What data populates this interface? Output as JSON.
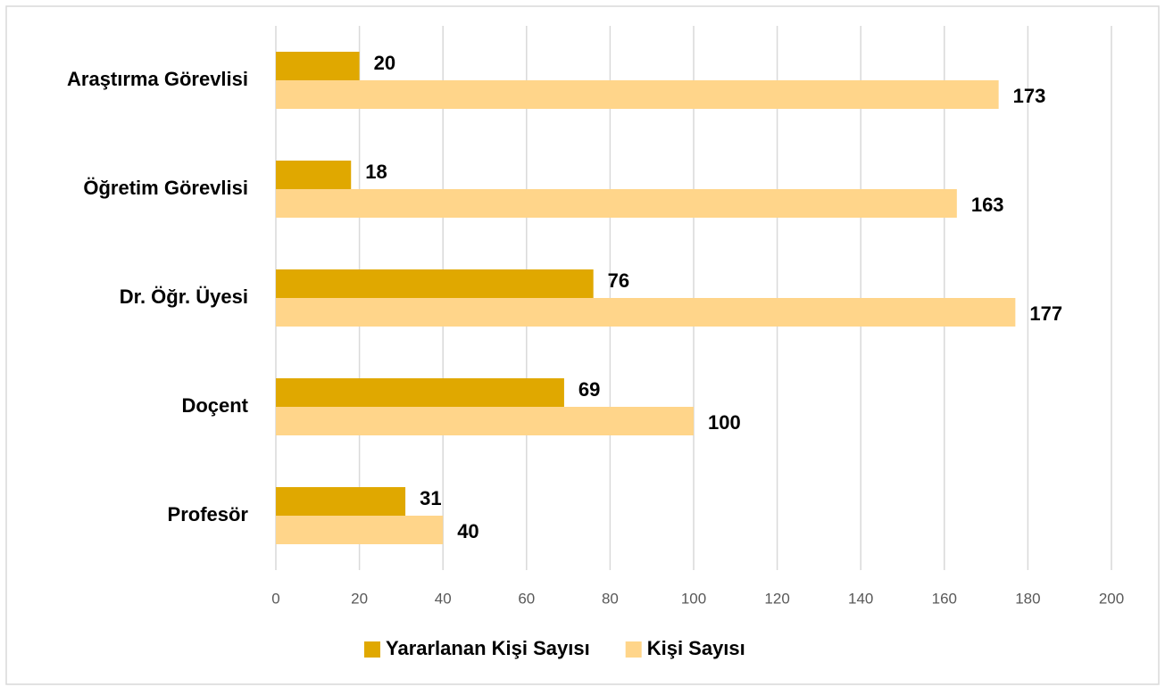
{
  "chart_data": {
    "type": "barh",
    "categories": [
      "Araştırma Görevlisi",
      "Öğretim Görevlisi",
      "Dr. Öğr. Üyesi",
      "Doçent",
      "Profesör"
    ],
    "series": [
      {
        "name": "Yararlanan Kişi Sayısı",
        "color": "#e0a800",
        "values": [
          20,
          18,
          76,
          69,
          31
        ]
      },
      {
        "name": "Kişi Sayısı",
        "color": "#ffd58a",
        "values": [
          173,
          163,
          177,
          100,
          40
        ]
      }
    ],
    "xlim": [
      0,
      200
    ],
    "xticks": [
      0,
      20,
      40,
      60,
      80,
      100,
      120,
      140,
      160,
      180,
      200
    ],
    "grid": true,
    "legend": "bottom"
  }
}
